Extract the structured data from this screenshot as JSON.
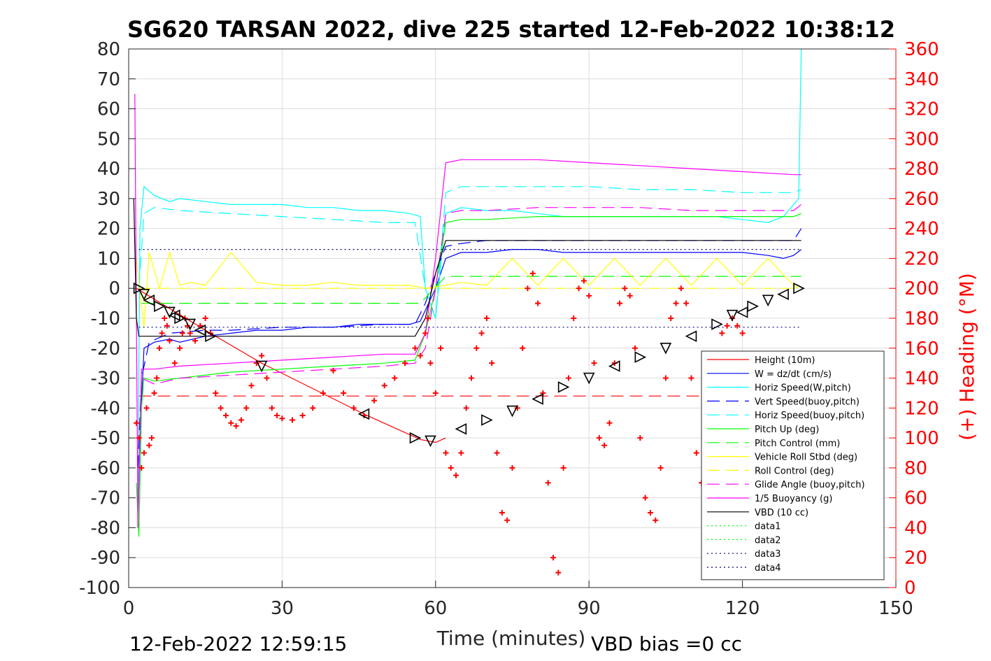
{
  "chart_data": {
    "type": "line",
    "title": "SG620 TARSAN 2022, dive 225 started 12-Feb-2022 10:38:12",
    "xlabel": "Time (minutes)",
    "ylabel_left": "",
    "ylabel_right": "(+) Heading (°M)",
    "footer_left": "12-Feb-2022 12:59:15",
    "footer_right": "VBD bias =0 cc",
    "xlim": [
      0,
      150
    ],
    "ylim_left": [
      -100,
      80
    ],
    "ylim_right": [
      0,
      360
    ],
    "x_ticks": [
      0,
      30,
      60,
      90,
      120,
      150
    ],
    "y_ticks_left": [
      80,
      70,
      60,
      50,
      40,
      30,
      20,
      10,
      0,
      -10,
      -20,
      -30,
      -40,
      -50,
      -60,
      -70,
      -80,
      -90,
      -100
    ],
    "y_ticks_right": [
      360,
      340,
      320,
      300,
      280,
      260,
      240,
      220,
      200,
      180,
      160,
      140,
      120,
      100,
      80,
      60,
      40,
      20,
      0
    ],
    "grid": true,
    "legend_position": "lower-right",
    "series": [
      {
        "name": "Height (10m)",
        "color": "#ff0000",
        "style": "solid",
        "x": [
          1.5,
          15,
          26,
          46,
          57,
          60,
          62
        ],
        "y": [
          0,
          -14,
          -25,
          -42,
          -50.5,
          -51.5,
          -50
        ]
      },
      {
        "name": "W = dz/dt (cm/s)",
        "color": "#0000ff",
        "style": "solid",
        "x": [
          1.8,
          2.2,
          3,
          5,
          8,
          10,
          15,
          20,
          25,
          30,
          35,
          40,
          45,
          50,
          55,
          57,
          60,
          62,
          65,
          70,
          75,
          80,
          85,
          90,
          95,
          100,
          105,
          110,
          115,
          120,
          125,
          128,
          130,
          131.5
        ],
        "y": [
          -75,
          -50,
          -20,
          -18,
          -17,
          -18,
          -16,
          -15,
          -14,
          -14,
          -13,
          -13,
          -12,
          -12,
          -12,
          -11,
          0,
          10,
          12,
          12,
          13,
          13,
          12,
          12,
          12,
          12,
          12,
          12,
          12,
          12,
          11,
          10,
          11,
          13
        ]
      },
      {
        "name": "Horiz Speed(W,pitch)",
        "color": "#00ffff",
        "style": "solid",
        "x": [
          1.8,
          2.2,
          3,
          5,
          8,
          10,
          15,
          20,
          25,
          30,
          35,
          40,
          45,
          50,
          55,
          57,
          58,
          60,
          62,
          65,
          70,
          75,
          80,
          85,
          90,
          95,
          100,
          105,
          110,
          115,
          120,
          125,
          128,
          131,
          131.5
        ],
        "y": [
          -70,
          20,
          34,
          31,
          29,
          30,
          29,
          28,
          28,
          28,
          27,
          27,
          26,
          26,
          25,
          24,
          0,
          -10,
          25,
          27,
          26,
          26,
          25,
          24,
          24,
          24,
          24,
          24,
          24,
          24,
          23,
          22,
          24,
          30,
          80
        ]
      },
      {
        "name": "Vert Speed(buoy,pitch)",
        "color": "#0000ff",
        "style": "dash",
        "x": [
          1.8,
          2.5,
          4,
          8,
          15,
          20,
          30,
          40,
          50,
          56,
          58,
          60,
          62,
          65,
          70,
          80,
          90,
          100,
          110,
          120,
          130,
          131.5
        ],
        "y": [
          -60,
          -30,
          -18,
          -15,
          -14,
          -14,
          -13,
          -13,
          -12,
          -12,
          -5,
          5,
          14,
          15,
          16,
          16,
          16,
          16,
          16,
          16,
          16,
          20
        ]
      },
      {
        "name": "Horiz Speed(buoy,pitch)",
        "color": "#00ffff",
        "style": "dash",
        "x": [
          2,
          3,
          5,
          10,
          20,
          30,
          40,
          50,
          56,
          58,
          60,
          62,
          65,
          70,
          80,
          90,
          100,
          110,
          120,
          130,
          131.5
        ],
        "y": [
          0,
          25,
          27,
          26,
          25,
          24,
          23,
          22,
          22,
          0,
          -10,
          32,
          34,
          34,
          34,
          34,
          33,
          33,
          32,
          32,
          33
        ]
      },
      {
        "name": "Pitch Up (deg)",
        "color": "#00ff00",
        "style": "solid",
        "x": [
          1.5,
          2,
          2.5,
          3,
          5,
          10,
          20,
          30,
          40,
          50,
          56,
          58,
          60,
          62,
          65,
          70,
          80,
          90,
          100,
          110,
          120,
          130,
          131.5
        ],
        "y": [
          -65,
          -83,
          -40,
          -30,
          -31,
          -30,
          -28,
          -27,
          -26,
          -25,
          -24,
          -15,
          0,
          22,
          23,
          23,
          24,
          24,
          24,
          24,
          24,
          24,
          25
        ]
      },
      {
        "name": "Pitch Control (mm)",
        "color": "#00ff00",
        "style": "dash",
        "x": [
          2.5,
          57,
          62,
          131.5
        ],
        "y": [
          -5,
          -5,
          4,
          4
        ]
      },
      {
        "name": "Vehicle Roll Stbd (deg)",
        "color": "#ffff00",
        "style": "solid",
        "x": [
          1.5,
          3,
          4,
          6,
          8,
          10,
          12,
          15,
          20,
          25,
          30,
          35,
          40,
          45,
          50,
          55,
          58,
          62,
          65,
          70,
          75,
          80,
          85,
          90,
          95,
          100,
          105,
          110,
          115,
          120,
          125,
          130,
          131
        ],
        "y": [
          10,
          -13,
          12,
          0,
          12,
          1,
          2,
          1,
          12,
          2,
          1,
          1,
          2,
          1,
          1,
          1,
          0,
          1,
          2,
          1,
          10,
          1,
          10,
          1,
          10,
          1,
          10,
          1,
          10,
          1,
          10,
          1,
          0
        ]
      },
      {
        "name": "Roll Control (deg)",
        "color": "#ffff00",
        "style": "dash",
        "x": [
          2,
          131
        ],
        "y": [
          0,
          0
        ]
      },
      {
        "name": "Glide Angle (buoy,pitch)",
        "color": "#ff00ff",
        "style": "dash",
        "x": [
          1.8,
          2.5,
          5,
          10,
          20,
          30,
          40,
          50,
          56,
          58,
          60,
          62,
          65,
          70,
          80,
          90,
          100,
          110,
          120,
          130,
          131.5
        ],
        "y": [
          -80,
          -30,
          -32,
          -30,
          -29,
          -28,
          -27,
          -26,
          -25,
          -20,
          0,
          25,
          26,
          26,
          27,
          27,
          27,
          26,
          26,
          26,
          28
        ]
      },
      {
        "name": "1/5 Buoyancy (g)",
        "color": "#ff00ff",
        "style": "solid",
        "x": [
          1.2,
          1.8,
          2.5,
          5,
          10,
          20,
          30,
          40,
          50,
          56,
          58,
          60,
          62,
          65,
          70,
          80,
          90,
          100,
          110,
          120,
          130,
          131.5
        ],
        "y": [
          65,
          -80,
          -27,
          -27,
          -26,
          -25,
          -24,
          -23,
          -22,
          -22,
          -15,
          10,
          42,
          43,
          43,
          43,
          42,
          41,
          40,
          39,
          38,
          38
        ]
      },
      {
        "name": "VBD (10 cc)",
        "color": "#000000",
        "style": "solid",
        "x": [
          1,
          1.5,
          2,
          56,
          58,
          60,
          62,
          131.5
        ],
        "y": [
          30,
          -10,
          -16,
          -16,
          -10,
          5,
          16,
          16
        ]
      },
      {
        "name": "data1",
        "color": "#00ff00",
        "style": "dot",
        "x": [],
        "y": []
      },
      {
        "name": "data2",
        "color": "#00ff00",
        "style": "dot",
        "x": [],
        "y": []
      },
      {
        "name": "data3",
        "color": "#000080",
        "style": "dot",
        "x": [
          2,
          131.5
        ],
        "y": [
          13,
          13
        ]
      },
      {
        "name": "data4",
        "color": "#000080",
        "style": "dot",
        "x": [
          2,
          131.5
        ],
        "y": [
          -13,
          -13
        ]
      }
    ],
    "extra_lines": [
      {
        "color": "#ff0000",
        "style": "dash",
        "x": [
          2,
          131.5
        ],
        "y": [
          -36,
          -36
        ]
      }
    ],
    "heading": {
      "color": "#ff0000",
      "marker": "+",
      "x": [
        1.5,
        2.0,
        2.5,
        3.0,
        3.5,
        4.0,
        4.5,
        5.0,
        5.5,
        6.0,
        6.5,
        7.0,
        7.5,
        8.0,
        9.0,
        10.0,
        10.5,
        11.0,
        11.5,
        12.0,
        13.0,
        14.0,
        15.0,
        16.0,
        17.0,
        18.0,
        19.0,
        20.0,
        21.0,
        22.0,
        23.0,
        24.0,
        25.0,
        26.0,
        27.0,
        28.0,
        29.0,
        30.0,
        32.0,
        34.0,
        36.0,
        38.0,
        40.0,
        42.0,
        44.0,
        46.0,
        48.0,
        50.0,
        52.0,
        54.0,
        56.0,
        57.0,
        58.0,
        58.5,
        59.0,
        60.0,
        61.0,
        62.0,
        63.0,
        64.0,
        65.0,
        66.0,
        67.0,
        68.0,
        69.0,
        70.0,
        71.0,
        72.0,
        73.0,
        74.0,
        75.0,
        76.0,
        77.0,
        78.0,
        79.0,
        80.0,
        81.0,
        82.0,
        83.0,
        84.0,
        85.0,
        86.0,
        87.0,
        88.0,
        89.0,
        90.0,
        91.0,
        92.0,
        93.0,
        94.0,
        95.0,
        96.0,
        97.0,
        98.0,
        99.0,
        100.0,
        101.0,
        102.0,
        103.0,
        104.0,
        105.0,
        106.0,
        107.0,
        108.0,
        109.0,
        110.0,
        111.0,
        112.0,
        113.0,
        114.0,
        115.0,
        116.0,
        117.0,
        118.0,
        119.0,
        120.0
      ],
      "y": [
        110,
        100,
        80,
        90,
        120,
        95,
        100,
        130,
        140,
        160,
        170,
        180,
        175,
        165,
        150,
        160,
        170,
        180,
        175,
        170,
        165,
        175,
        180,
        170,
        130,
        120,
        115,
        110,
        108,
        112,
        120,
        135,
        150,
        155,
        140,
        120,
        115,
        113,
        112,
        115,
        120,
        130,
        145,
        130,
        120,
        115,
        125,
        135,
        140,
        150,
        160,
        155,
        170,
        180,
        150,
        130,
        160,
        90,
        80,
        75,
        90,
        120,
        140,
        160,
        170,
        180,
        150,
        90,
        50,
        45,
        80,
        120,
        160,
        200,
        210,
        190,
        130,
        70,
        20,
        10,
        80,
        140,
        180,
        200,
        205,
        195,
        150,
        100,
        95,
        110,
        150,
        190,
        200,
        195,
        160,
        100,
        60,
        50,
        45,
        80,
        140,
        180,
        190,
        200,
        190,
        140,
        90,
        70,
        65,
        90,
        130,
        170,
        175,
        180,
        175,
        170
      ]
    },
    "markers_left_down": {
      "x": [
        2,
        3,
        4,
        6,
        8,
        9,
        10,
        12,
        14,
        16,
        26,
        46,
        56,
        59,
        65,
        70,
        75,
        80,
        85,
        90,
        95,
        100,
        105,
        110,
        115,
        118,
        120,
        122,
        125,
        128,
        131
      ],
      "y": [
        0,
        -2,
        -4,
        -6,
        -8,
        -9,
        -10,
        -12,
        -14,
        -16,
        -26,
        -42,
        -50,
        -51,
        -47,
        -44,
        -41,
        -37,
        -33,
        -30,
        -26,
        -23,
        -20,
        -16,
        -12,
        -9,
        -8,
        -6,
        -4,
        -2,
        0
      ]
    }
  }
}
